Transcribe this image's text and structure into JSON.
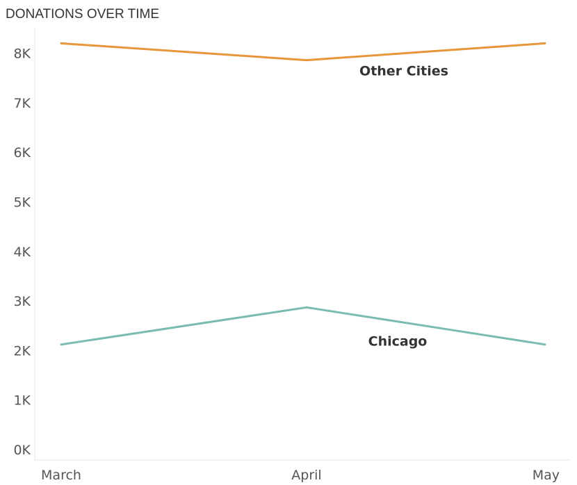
{
  "title": "DONATIONS OVER TIME",
  "colors": {
    "other_cities": "#E8963A",
    "chicago": "#7BBBB0",
    "axis": "#E6E6E6"
  },
  "chart_data": {
    "type": "line",
    "title": "DONATIONS OVER TIME",
    "x": [
      "March",
      "April",
      "May"
    ],
    "ylim": [
      0,
      8500
    ],
    "yticks": [
      0,
      1000,
      2000,
      3000,
      4000,
      5000,
      6000,
      7000,
      8000
    ],
    "ytick_labels": [
      "0K",
      "1K",
      "2K",
      "3K",
      "4K",
      "5K",
      "6K",
      "7K",
      "8K"
    ],
    "grid": false,
    "series": [
      {
        "name": "Other Cities",
        "values": [
          8200,
          7860,
          8200
        ],
        "color_key": "other_cities"
      },
      {
        "name": "Chicago",
        "values": [
          2120,
          2870,
          2120
        ],
        "color_key": "chicago"
      }
    ]
  }
}
